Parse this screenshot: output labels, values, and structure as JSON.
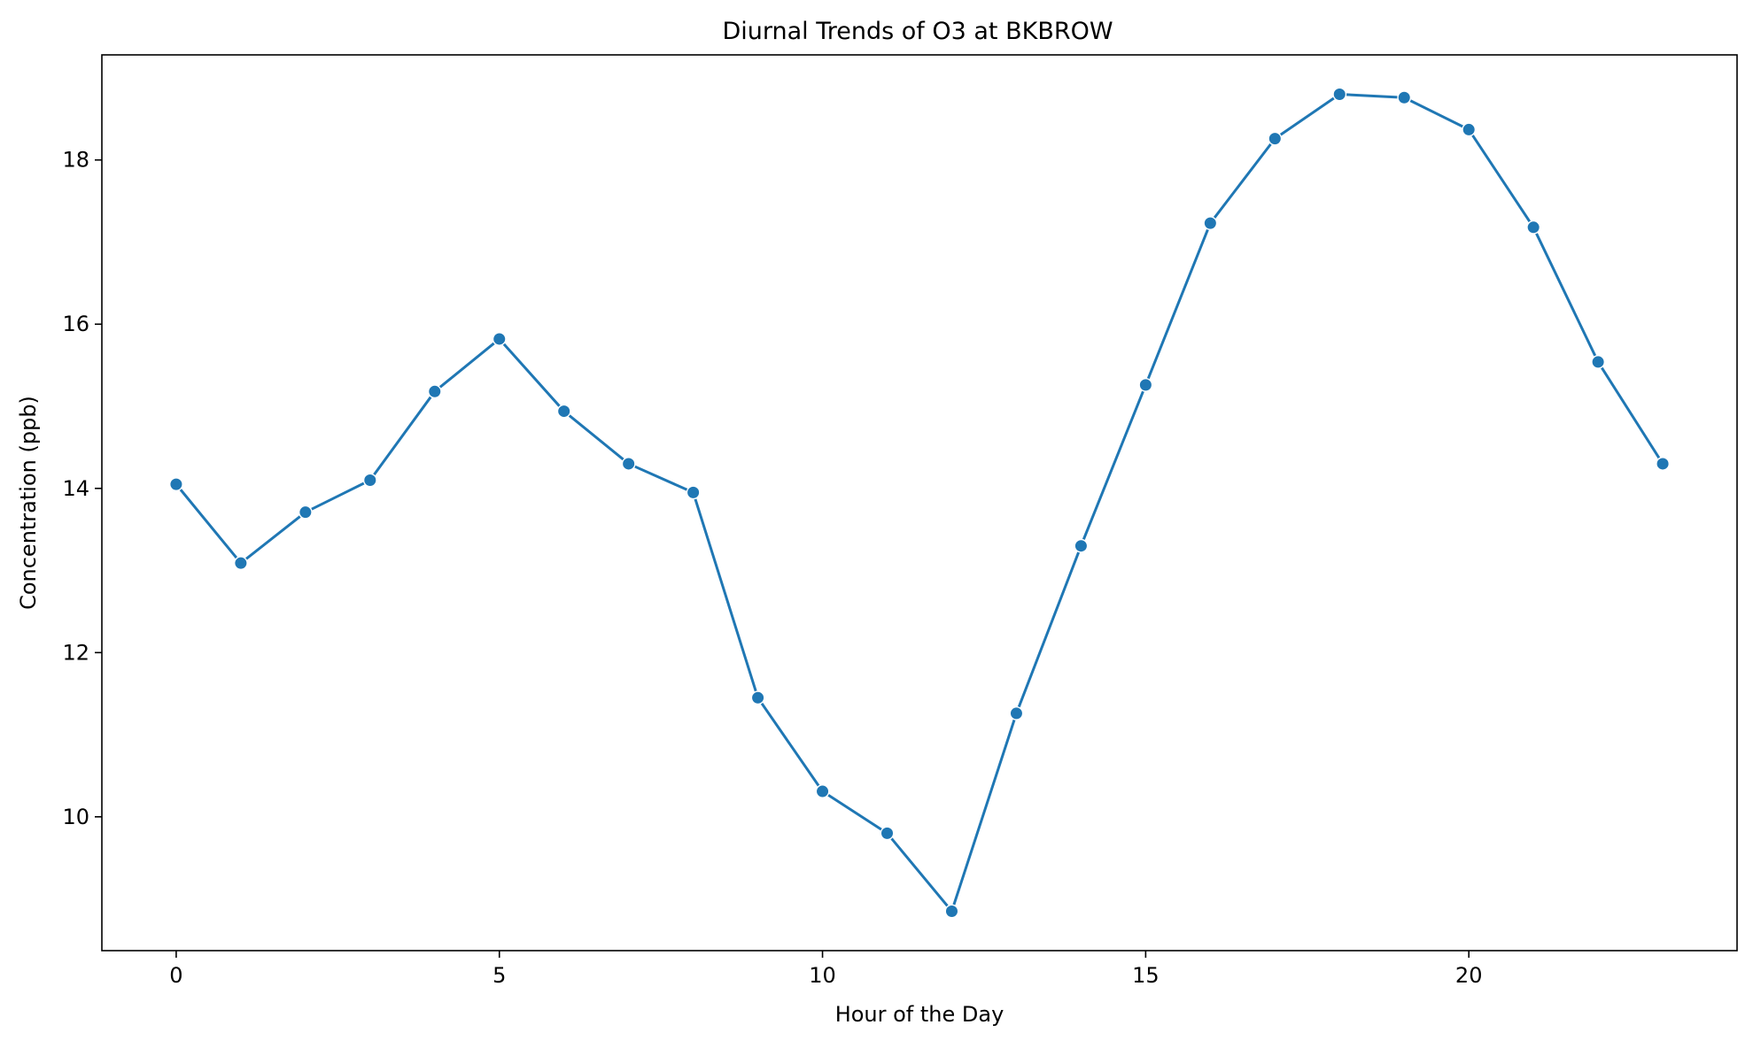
{
  "chart_data": {
    "type": "line",
    "title": "Diurnal Trends of O3 at BKBROW",
    "xlabel": "Hour of the Day",
    "ylabel": "Concentration (ppb)",
    "xlim": [
      -1.15,
      24.15
    ],
    "ylim": [
      8.37,
      19.28
    ],
    "xticks": [
      0,
      5,
      10,
      15,
      20
    ],
    "yticks": [
      10,
      12,
      14,
      16,
      18
    ],
    "grid": false,
    "legend": "none",
    "color": "#1f77b4",
    "marker": "circle",
    "x": [
      0,
      1,
      2,
      3,
      4,
      5,
      6,
      7,
      8,
      9,
      10,
      11,
      12,
      13,
      14,
      15,
      16,
      17,
      18,
      19,
      20,
      21,
      22,
      23
    ],
    "series": [
      {
        "values": [
          14.05,
          13.09,
          13.71,
          14.1,
          15.18,
          15.82,
          14.94,
          14.3,
          13.95,
          11.45,
          10.31,
          9.8,
          8.85,
          11.26,
          13.3,
          15.26,
          17.23,
          18.26,
          18.8,
          18.76,
          18.37,
          17.18,
          15.54,
          14.3
        ]
      }
    ]
  }
}
